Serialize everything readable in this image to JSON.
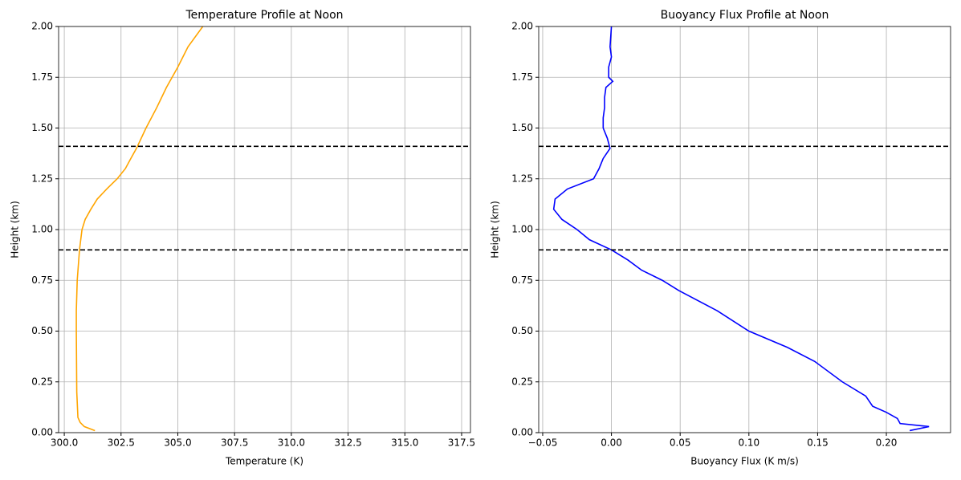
{
  "chart_data": [
    {
      "type": "line",
      "title": "Temperature Profile at Noon",
      "x_label": "Temperature (K)",
      "y_label": "Height (km)",
      "xlim": [
        299.75,
        317.89
      ],
      "ylim": [
        0,
        2
      ],
      "xticks": [
        {
          "value": 300,
          "label": "300.0"
        },
        302.5,
        {
          "value": 305,
          "label": "305.0"
        },
        307.5,
        {
          "value": 310,
          "label": "310.0"
        },
        312.5,
        {
          "value": 315,
          "label": "315.0"
        },
        317.5
      ],
      "yticks": [
        {
          "value": 0,
          "label": "0.00"
        },
        0.25,
        {
          "value": 0.5,
          "label": "0.50"
        },
        0.75,
        {
          "value": 1,
          "label": "1.00"
        },
        1.25,
        {
          "value": 1.5,
          "label": "1.50"
        },
        1.75,
        {
          "value": 2,
          "label": "2.00"
        }
      ],
      "grid": true,
      "hlines": [
        0.9,
        1.41
      ],
      "series": [
        {
          "color": "#ffa500",
          "x": [
            301.35,
            300.88,
            300.7,
            300.6,
            300.55,
            300.53,
            300.53,
            300.57,
            300.67,
            300.78,
            300.92,
            301.17,
            301.45,
            301.87,
            302.33,
            302.69,
            302.93,
            303.18,
            303.6,
            304.07,
            304.5,
            305.0,
            305.45,
            306.1
          ],
          "values": [
            0.01,
            0.03,
            0.05,
            0.075,
            0.2,
            0.5,
            0.6,
            0.75,
            0.9,
            1.0,
            1.05,
            1.1,
            1.15,
            1.2,
            1.25,
            1.3,
            1.35,
            1.4,
            1.5,
            1.6,
            1.7,
            1.8,
            1.9,
            2.0
          ]
        }
      ]
    },
    {
      "type": "line",
      "title": "Buoyancy Flux Profile at Noon",
      "x_label": "Buoyancy Flux (K m/s)",
      "y_label": "Height (km)",
      "xlim": [
        -0.0529,
        0.2467
      ],
      "ylim": [
        0,
        2
      ],
      "xticks": [
        {
          "value": -0.05,
          "label": "−0.05"
        },
        {
          "value": 0,
          "label": "0.00"
        },
        0.05,
        {
          "value": 0.1,
          "label": "0.10"
        },
        0.15,
        {
          "value": 0.2,
          "label": "0.20"
        }
      ],
      "yticks": [
        {
          "value": 0,
          "label": "0.00"
        },
        0.25,
        {
          "value": 0.5,
          "label": "0.50"
        },
        0.75,
        {
          "value": 1,
          "label": "1.00"
        },
        1.25,
        {
          "value": 1.5,
          "label": "1.50"
        },
        1.75,
        {
          "value": 2,
          "label": "2.00"
        }
      ],
      "grid": true,
      "hlines": [
        0.9,
        1.41
      ],
      "series": [
        {
          "color": "#0000ff",
          "x": [
            0.217,
            0.231,
            0.21,
            0.208,
            0.2,
            0.19,
            0.185,
            0.168,
            0.148,
            0.128,
            0.1,
            0.077,
            0.049,
            0.037,
            0.022,
            0.012,
            0.0,
            -0.016,
            -0.025,
            -0.036,
            -0.042,
            -0.041,
            -0.032,
            -0.013,
            -0.009,
            -0.006,
            -0.001,
            -0.003,
            -0.006,
            -0.006,
            -0.005,
            -0.005,
            -0.004,
            0.001,
            -0.002,
            -0.002,
            0.0,
            -0.001,
            0.0
          ],
          "values": [
            0.01,
            0.03,
            0.045,
            0.07,
            0.1,
            0.13,
            0.18,
            0.25,
            0.35,
            0.42,
            0.5,
            0.6,
            0.7,
            0.75,
            0.8,
            0.85,
            0.9,
            0.95,
            1.0,
            1.05,
            1.1,
            1.15,
            1.2,
            1.25,
            1.3,
            1.35,
            1.4,
            1.45,
            1.5,
            1.55,
            1.6,
            1.65,
            1.7,
            1.73,
            1.75,
            1.8,
            1.85,
            1.9,
            2.0
          ]
        }
      ]
    }
  ]
}
